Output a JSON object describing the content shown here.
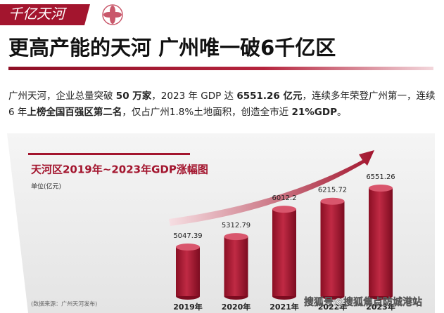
{
  "header": {
    "tag": "千亿天河",
    "headline": "更高产能的天河 广州唯一破6千亿区"
  },
  "paragraph": [
    {
      "text": "广州天河，企业总量突破 ",
      "bold": false
    },
    {
      "text": "50 万家",
      "bold": true
    },
    {
      "text": "，2023 年 GDP 达 ",
      "bold": false
    },
    {
      "text": "6551.26 亿元",
      "bold": true
    },
    {
      "text": "，连续多年荣登广州第一，连续 6 年",
      "bold": false
    },
    {
      "text": "上榜全国百强区第二名",
      "bold": true
    },
    {
      "text": "，仅占广州1.8%土地面积，创造全市近 ",
      "bold": false
    },
    {
      "text": "21%GDP",
      "bold": true
    },
    {
      "text": "。",
      "bold": false
    }
  ],
  "chart_data": {
    "type": "bar",
    "title": "天河区2019年~2023年GDP涨幅图",
    "unit": "单位(亿元)",
    "categories": [
      "2019年",
      "2020年",
      "2021年",
      "2022年",
      "2023年"
    ],
    "values": [
      5047.39,
      5312.79,
      6012.2,
      6215.72,
      6551.26
    ],
    "color": "#a3152e",
    "source": "(数据来源：广州天河发布)"
  },
  "watermark": "搜狐号@搜狐焦点防城港站"
}
